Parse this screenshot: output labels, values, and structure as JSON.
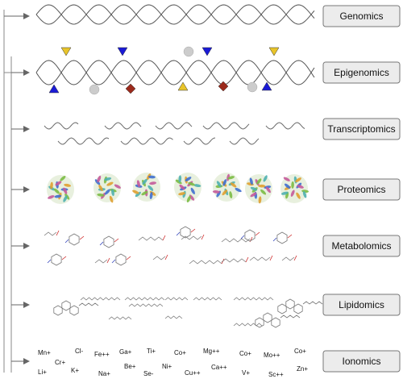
{
  "layers": [
    {
      "id": "genomics",
      "label": "Genomics"
    },
    {
      "id": "epigenomics",
      "label": "Epigenomics"
    },
    {
      "id": "transcriptomics",
      "label": "Transcriptomics"
    },
    {
      "id": "proteomics",
      "label": "Proteomics"
    },
    {
      "id": "metabolomics",
      "label": "Metabolomics"
    },
    {
      "id": "lipidomics",
      "label": "Lipidomics"
    },
    {
      "id": "ionomics",
      "label": "Ionomics"
    }
  ],
  "ions": [
    "Mn+",
    "Cl-",
    "Fe++",
    "Ga+",
    "Ti+",
    "Co+",
    "Mg++",
    "Co+",
    "Mo++",
    "Co+",
    "Li+",
    "Cr+",
    "K+",
    "Na+",
    "Be+",
    "Se-",
    "Ni+",
    "Cu++",
    "Ca++",
    "V+",
    "Sc++",
    "Zn+"
  ],
  "colors": {
    "marker_yellow": "#e8c42a",
    "marker_blue": "#1a1ad6",
    "marker_gray": "#cccccc",
    "marker_red": "#9b2a1c",
    "label_fill": "#ececec"
  }
}
